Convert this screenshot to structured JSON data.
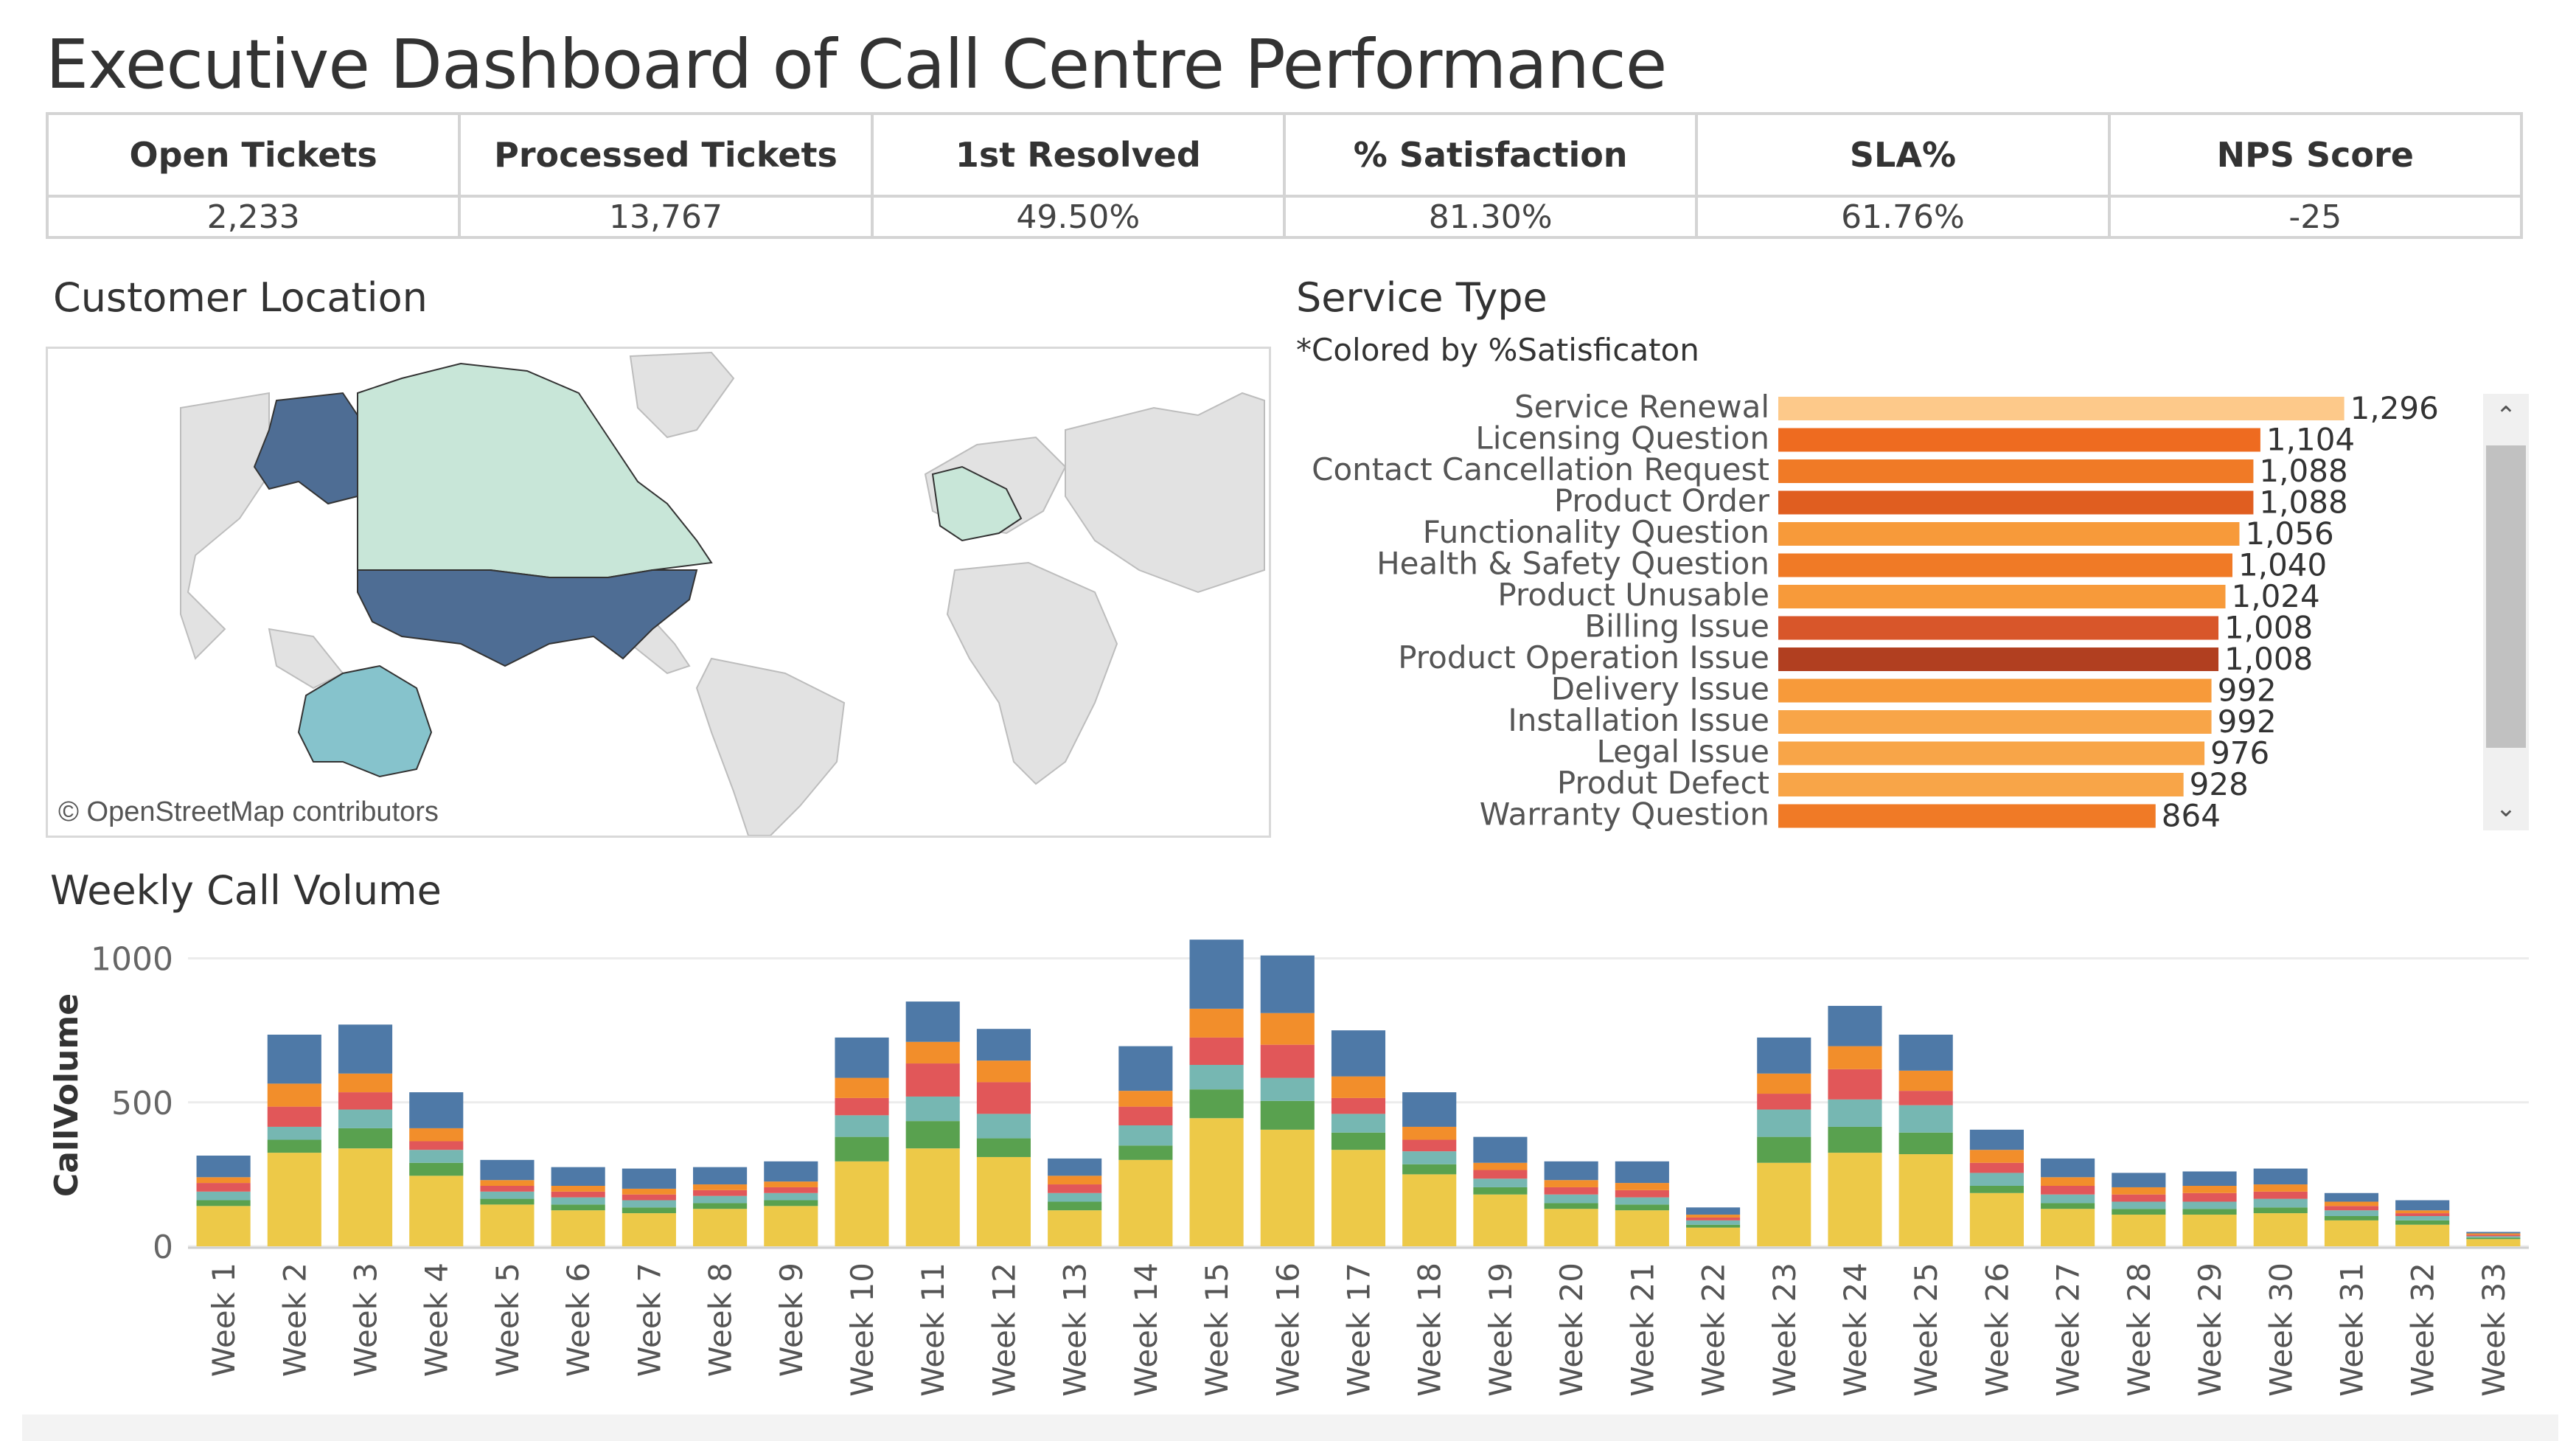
{
  "dashboard": {
    "title": "Executive Dashboard of Call Centre Performance"
  },
  "kpis": [
    {
      "label": "Open Tickets",
      "value": "2,233"
    },
    {
      "label": "Processed Tickets",
      "value": "13,767"
    },
    {
      "label": "1st Resolved",
      "value": "49.50%"
    },
    {
      "label": "% Satisfaction",
      "value": "81.30%"
    },
    {
      "label": "SLA%",
      "value": "61.76%"
    },
    {
      "label": "NPS Score",
      "value": "-25"
    }
  ],
  "map": {
    "title": "Customer Location",
    "credit": "© OpenStreetMap contributors",
    "colors": {
      "land": "#e2e2e2",
      "light": "#c8e6d8",
      "mid": "#86c3cc",
      "dark": "#4e6d94"
    }
  },
  "service_type": {
    "title": "Service Type",
    "subtitle": "*Colored by %Satisficaton"
  },
  "weekly": {
    "title": "Weekly Call Volume"
  },
  "chart_data": [
    {
      "type": "bar",
      "orientation": "horizontal",
      "title": "Service Type",
      "subtitle": "*Colored by %Satisficaton",
      "categories": [
        "Service Renewal",
        "Licensing Question",
        "Contact Cancellation Request",
        "Product Order",
        "Functionality Question",
        "Health & Safety Question",
        "Product Unusable",
        "Billing Issue",
        "Product Operation Issue",
        "Delivery Issue",
        "Installation Issue",
        "Legal Issue",
        "Produt Defect",
        "Warranty Question"
      ],
      "values": [
        1296,
        1104,
        1088,
        1088,
        1056,
        1040,
        1024,
        1008,
        1008,
        992,
        992,
        976,
        928,
        864
      ],
      "value_labels": [
        "1,296",
        "1,104",
        "1,088",
        "1,088",
        "1,056",
        "1,040",
        "1,024",
        "1,008",
        "1,008",
        "992",
        "992",
        "976",
        "928",
        "864"
      ],
      "colors": [
        "#fdc98a",
        "#ee6b20",
        "#f07a26",
        "#e05e20",
        "#f79a3a",
        "#f07a26",
        "#f79a3a",
        "#d8562a",
        "#b13f20",
        "#f79a3a",
        "#f8a548",
        "#f8a548",
        "#f8a548",
        "#f07a26"
      ],
      "xlim": [
        0,
        1300
      ]
    },
    {
      "type": "bar",
      "stacked": true,
      "title": "Weekly Call Volume",
      "xlabel": "",
      "ylabel": "CallVolume",
      "ylim": [
        0,
        1050
      ],
      "yticks": [
        1000,
        500,
        0
      ],
      "categories": [
        "Week 1",
        "Week 2",
        "Week 3",
        "Week 4",
        "Week 5",
        "Week 6",
        "Week 7",
        "Week 8",
        "Week 9",
        "Week 10",
        "Week 11",
        "Week 12",
        "Week 13",
        "Week 14",
        "Week 15",
        "Week 16",
        "Week 17",
        "Week 18",
        "Week 19",
        "Week 20",
        "Week 21",
        "Week 22",
        "Week 23",
        "Week 24",
        "Week 25",
        "Week 26",
        "Week 27",
        "Week 28",
        "Week 29",
        "Week 30",
        "Week 31",
        "Week 32",
        "Week 33"
      ],
      "series": [
        {
          "color": "#edc948",
          "values": [
            140,
            325,
            340,
            245,
            145,
            125,
            115,
            130,
            140,
            295,
            340,
            310,
            125,
            300,
            445,
            405,
            335,
            250,
            180,
            130,
            125,
            65,
            290,
            325,
            320,
            185,
            130,
            110,
            110,
            115,
            90,
            75,
            25
          ]
        },
        {
          "color": "#59a14f",
          "values": [
            20,
            45,
            70,
            45,
            20,
            20,
            20,
            20,
            20,
            85,
            95,
            65,
            30,
            50,
            100,
            100,
            60,
            35,
            25,
            20,
            20,
            10,
            90,
            90,
            75,
            25,
            20,
            20,
            20,
            20,
            15,
            15,
            5
          ]
        },
        {
          "color": "#76b7b2",
          "values": [
            30,
            45,
            65,
            45,
            25,
            25,
            25,
            25,
            25,
            75,
            85,
            85,
            30,
            70,
            85,
            80,
            65,
            45,
            30,
            30,
            25,
            15,
            95,
            95,
            95,
            45,
            30,
            25,
            25,
            30,
            20,
            15,
            5
          ]
        },
        {
          "color": "#e15759",
          "values": [
            30,
            70,
            60,
            30,
            20,
            20,
            20,
            20,
            20,
            60,
            115,
            110,
            30,
            65,
            95,
            115,
            55,
            40,
            30,
            25,
            25,
            10,
            55,
            105,
            50,
            35,
            30,
            25,
            30,
            25,
            15,
            10,
            5
          ]
        },
        {
          "color": "#f28e2b",
          "values": [
            20,
            80,
            65,
            45,
            20,
            20,
            20,
            20,
            20,
            70,
            75,
            75,
            30,
            55,
            100,
            110,
            75,
            45,
            25,
            25,
            25,
            10,
            70,
            80,
            70,
            45,
            30,
            25,
            25,
            25,
            15,
            10,
            5
          ]
        },
        {
          "color": "#4e79a7",
          "values": [
            75,
            170,
            170,
            125,
            70,
            65,
            70,
            60,
            70,
            140,
            140,
            110,
            60,
            155,
            240,
            200,
            160,
            120,
            90,
            65,
            75,
            25,
            125,
            140,
            125,
            70,
            65,
            50,
            50,
            55,
            30,
            35,
            5
          ]
        }
      ]
    }
  ]
}
